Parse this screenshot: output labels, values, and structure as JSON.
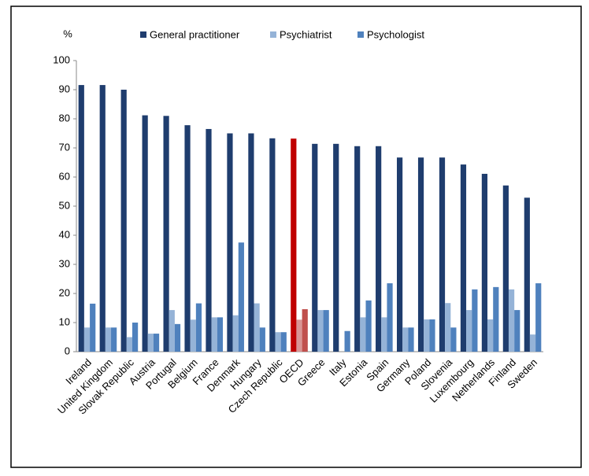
{
  "chart_data": {
    "type": "bar",
    "y_label": "%",
    "categories": [
      "Ireland",
      "United Kingdom",
      "Slovak Republic",
      "Austria",
      "Portugal",
      "Belgium",
      "France",
      "Denmark",
      "Hungary",
      "Czech Republic",
      "OECD",
      "Greece",
      "Italy",
      "Estonia",
      "Spain",
      "Germany",
      "Poland",
      "Slovenia",
      "Luxembourg",
      "Netherlands",
      "Finland",
      "Sweden"
    ],
    "series": [
      {
        "name": "General practitioner",
        "color": "#1f3d6e",
        "highlight_color": "#c00000",
        "values": [
          91.6,
          91.6,
          90,
          81.2,
          81,
          77.8,
          76.5,
          75,
          75,
          73.3,
          73.2,
          71.4,
          71.4,
          70.6,
          70.6,
          66.7,
          66.7,
          66.7,
          64.3,
          61.1,
          57.1,
          52.9
        ]
      },
      {
        "name": "Psychiatrist",
        "color": "#95b3d7",
        "highlight_color": "#d99594",
        "values": [
          8.3,
          8.3,
          5,
          6.2,
          14.3,
          11,
          11.8,
          12.5,
          16.6,
          6.7,
          11,
          14.3,
          0,
          11.8,
          11.8,
          8.3,
          11.1,
          16.7,
          14.3,
          11.1,
          21.4,
          5.9
        ]
      },
      {
        "name": "Psychologist",
        "color": "#4f81bd",
        "highlight_color": "#c0504d",
        "values": [
          16.5,
          8.3,
          10,
          6.2,
          9.5,
          16.6,
          11.8,
          37.5,
          8.3,
          6.7,
          14.6,
          14.3,
          7.1,
          17.6,
          23.5,
          8.3,
          11.1,
          8.3,
          21.4,
          22.2,
          14.3,
          23.5
        ]
      }
    ],
    "highlight_category": "OECD",
    "ylim": [
      0,
      100
    ],
    "yticks": [
      0,
      10,
      20,
      30,
      40,
      50,
      60,
      70,
      80,
      90,
      100
    ],
    "grid": false
  }
}
